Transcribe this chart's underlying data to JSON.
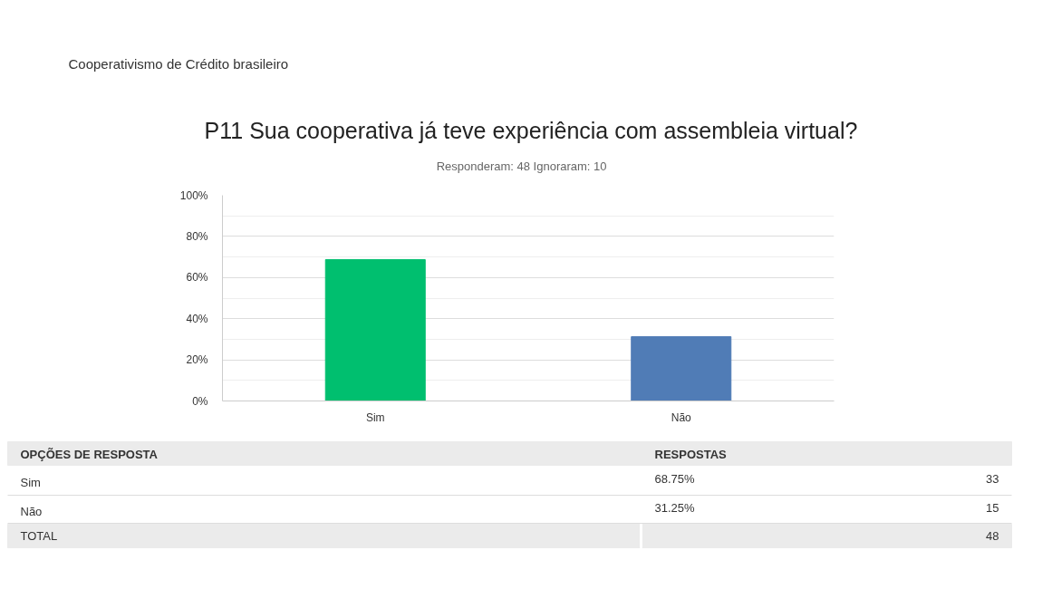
{
  "chart_data": {
    "type": "bar",
    "title": "P11 Sua cooperativa já teve experiência com assembleia virtual?",
    "subtitle": "Responderam: 48    Ignoraram: 10",
    "categories": [
      "Sim",
      "Não"
    ],
    "values": [
      68.75,
      31.25
    ],
    "colors": [
      "#00bf6f",
      "#507cb6"
    ],
    "ylim": [
      0,
      100
    ],
    "yticks": [
      {
        "value": 0,
        "label": "0%"
      },
      {
        "value": 20,
        "label": "20%"
      },
      {
        "value": 40,
        "label": "40%"
      },
      {
        "value": 60,
        "label": "60%"
      },
      {
        "value": 80,
        "label": "80%"
      },
      {
        "value": 100,
        "label": "100%"
      }
    ],
    "grid": "y",
    "annotations": [
      "Cooperativismo de Crédito brasileiro",
      "OPÇÕES DE RESPOSTA",
      "RESPOSTAS",
      "33",
      "15",
      "TOTAL",
      "48",
      "68.75%",
      "31.25%"
    ]
  }
}
